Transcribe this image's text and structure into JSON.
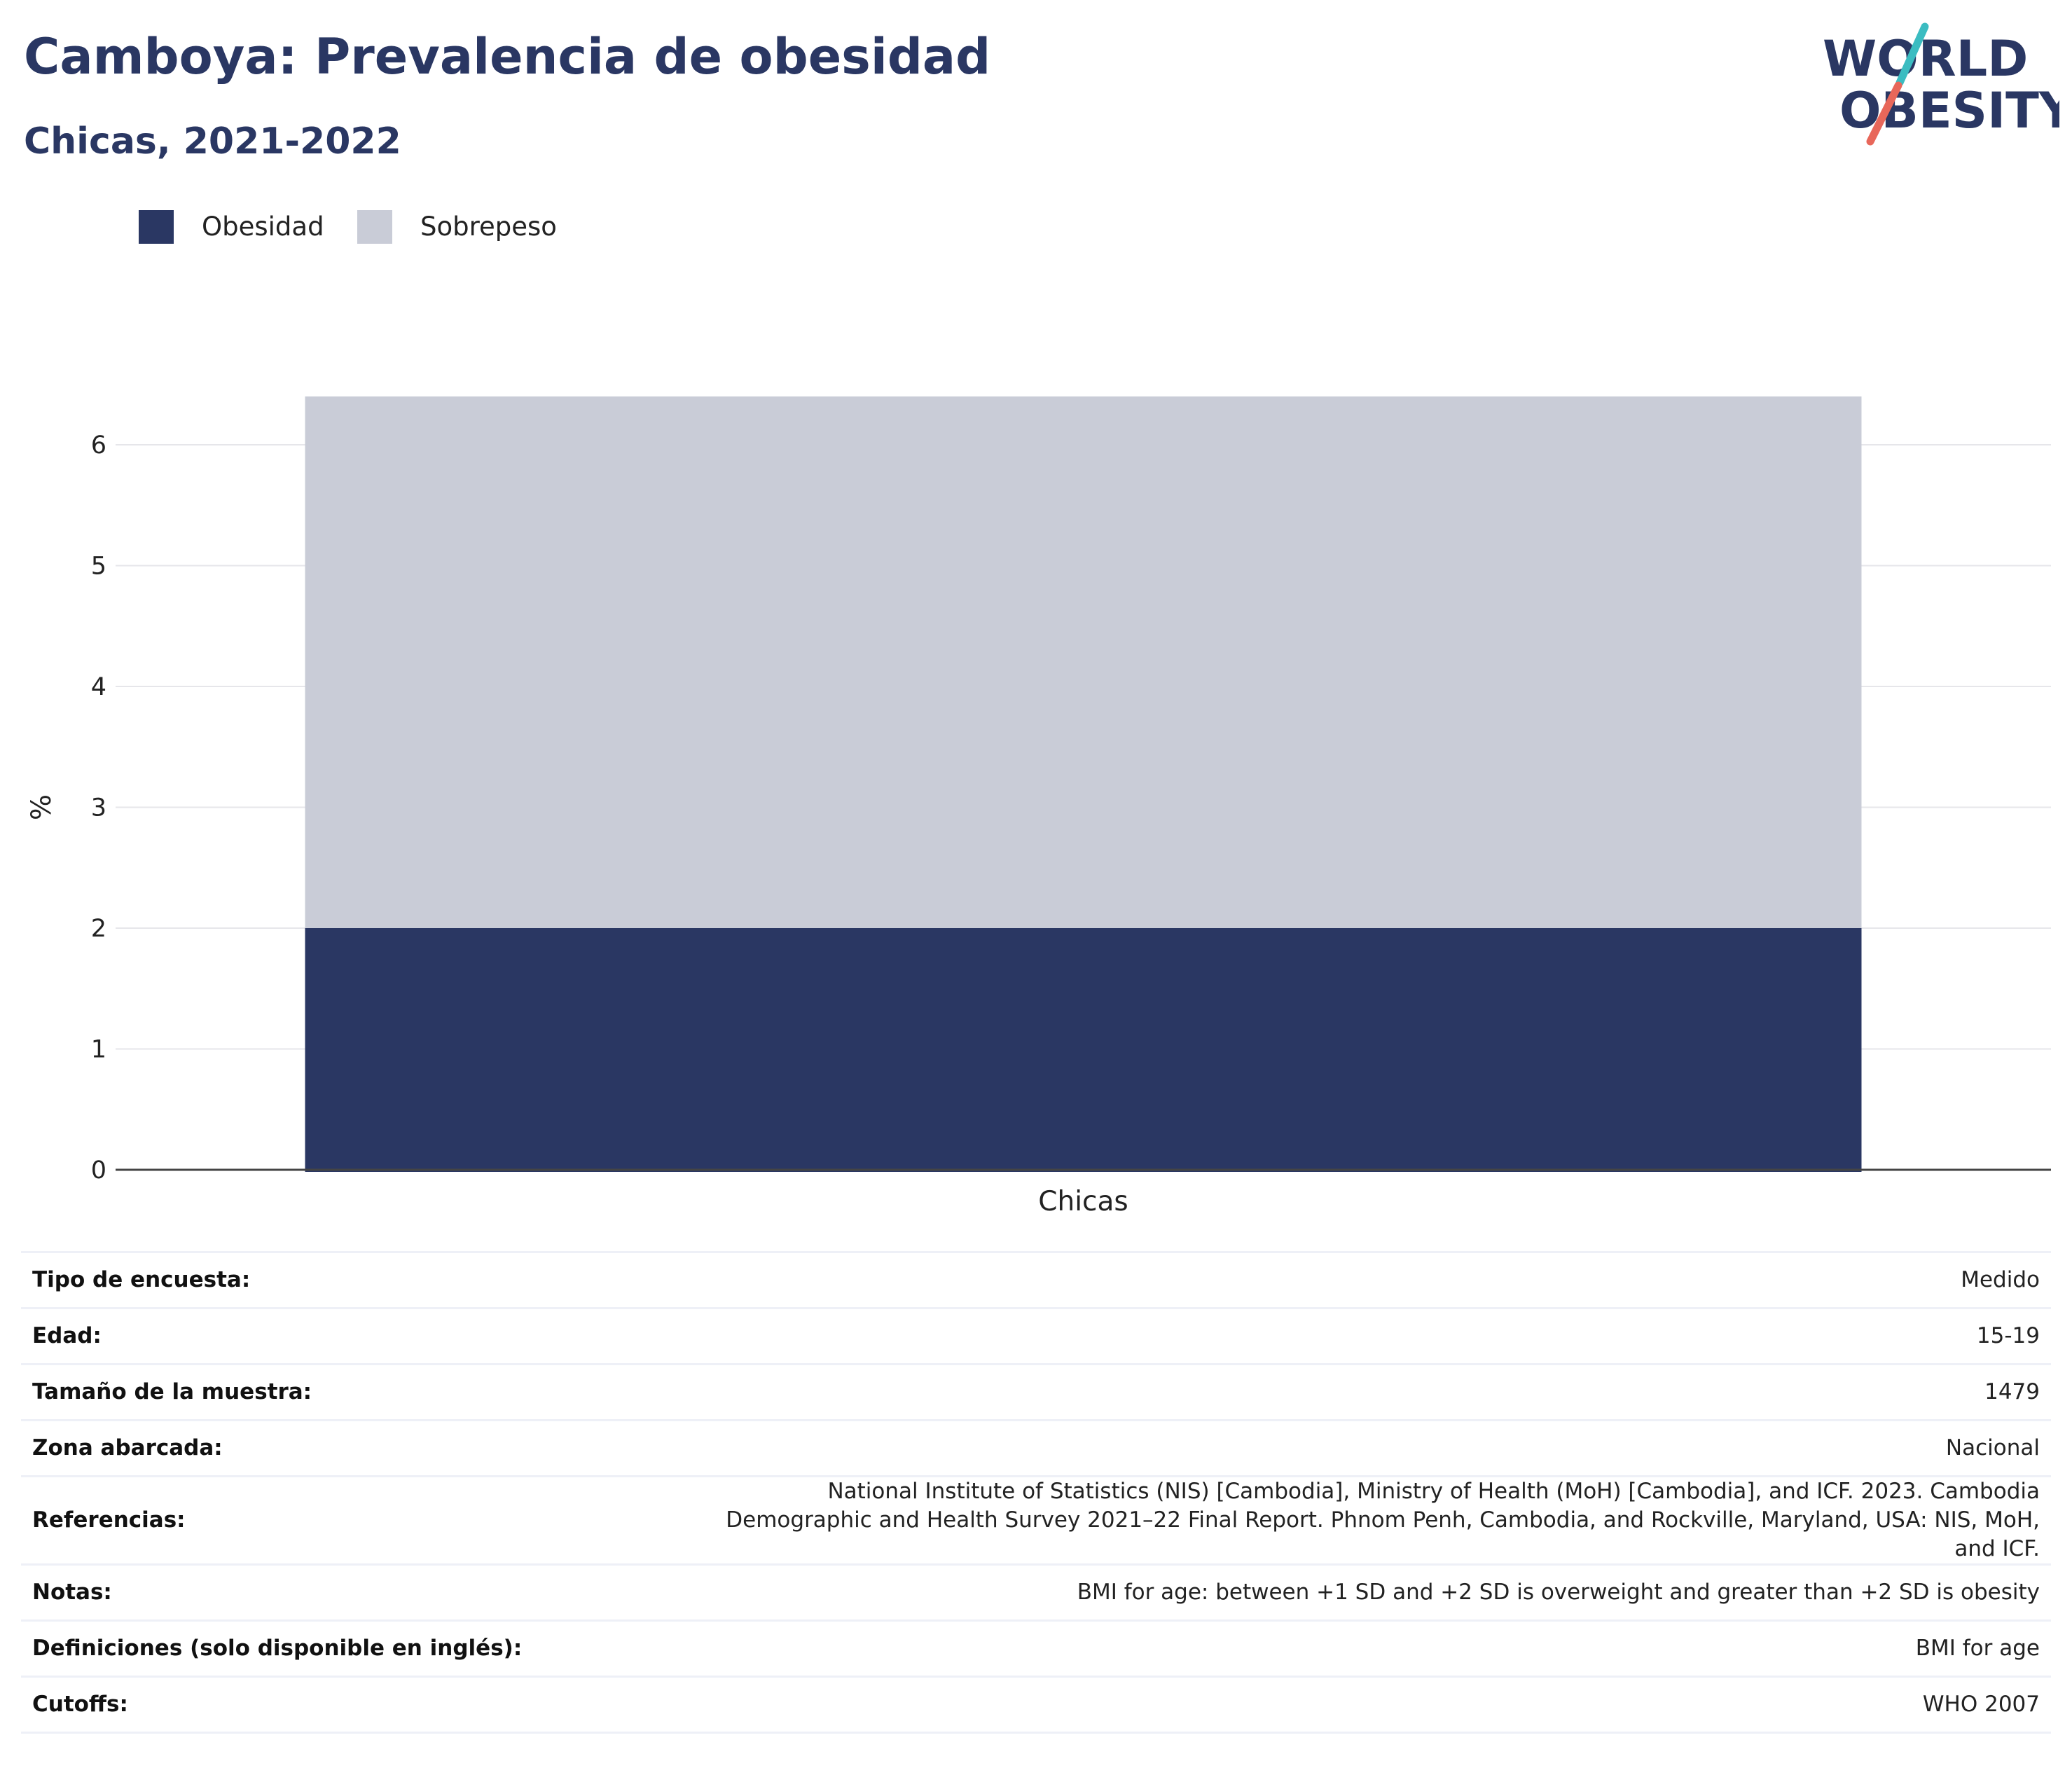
{
  "header": {
    "title": "Camboya: Prevalencia de obesidad",
    "subtitle": "Chicas, 2021-2022"
  },
  "logo": {
    "line1": "WORLD",
    "line2": "OBESITY",
    "color_text": "#2a3763",
    "color_slash_top": "#3bbcc1",
    "color_slash_bottom": "#e8675a"
  },
  "legend": [
    {
      "label": "Obesidad",
      "color": "#2a3763"
    },
    {
      "label": "Sobrepeso",
      "color": "#c9ccd7"
    }
  ],
  "chart_data": {
    "type": "bar",
    "stacked": true,
    "categories": [
      "Chicas"
    ],
    "series": [
      {
        "name": "Obesidad",
        "values": [
          2.0
        ],
        "color": "#2a3763"
      },
      {
        "name": "Sobrepeso",
        "values": [
          4.4
        ],
        "color": "#c9ccd7"
      }
    ],
    "ylabel": "%",
    "xlabel": "",
    "ylim": [
      0,
      6.4
    ],
    "yticks": [
      0,
      1,
      2,
      3,
      4,
      5,
      6
    ],
    "grid": true,
    "legend_position": "top-left"
  },
  "details": [
    {
      "key": "Tipo de encuesta:",
      "value": "Medido"
    },
    {
      "key": "Edad:",
      "value": "15-19"
    },
    {
      "key": "Tamaño de la muestra:",
      "value": "1479"
    },
    {
      "key": "Zona abarcada:",
      "value": "Nacional"
    },
    {
      "key": "Referencias:",
      "value": "National Institute of Statistics (NIS) [Cambodia], Ministry of Health (MoH) [Cambodia], and ICF. 2023. Cambodia Demographic and Health Survey 2021–22 Final Report. Phnom Penh, Cambodia, and Rockville, Maryland, USA: NIS, MoH, and ICF."
    },
    {
      "key": "Notas:",
      "value": "BMI for age: between +1 SD and +2 SD is overweight and greater than +2 SD is obesity"
    },
    {
      "key": "Definiciones (solo disponible en inglés):",
      "value": "BMI for age"
    },
    {
      "key": "Cutoffs:",
      "value": "WHO 2007"
    }
  ]
}
